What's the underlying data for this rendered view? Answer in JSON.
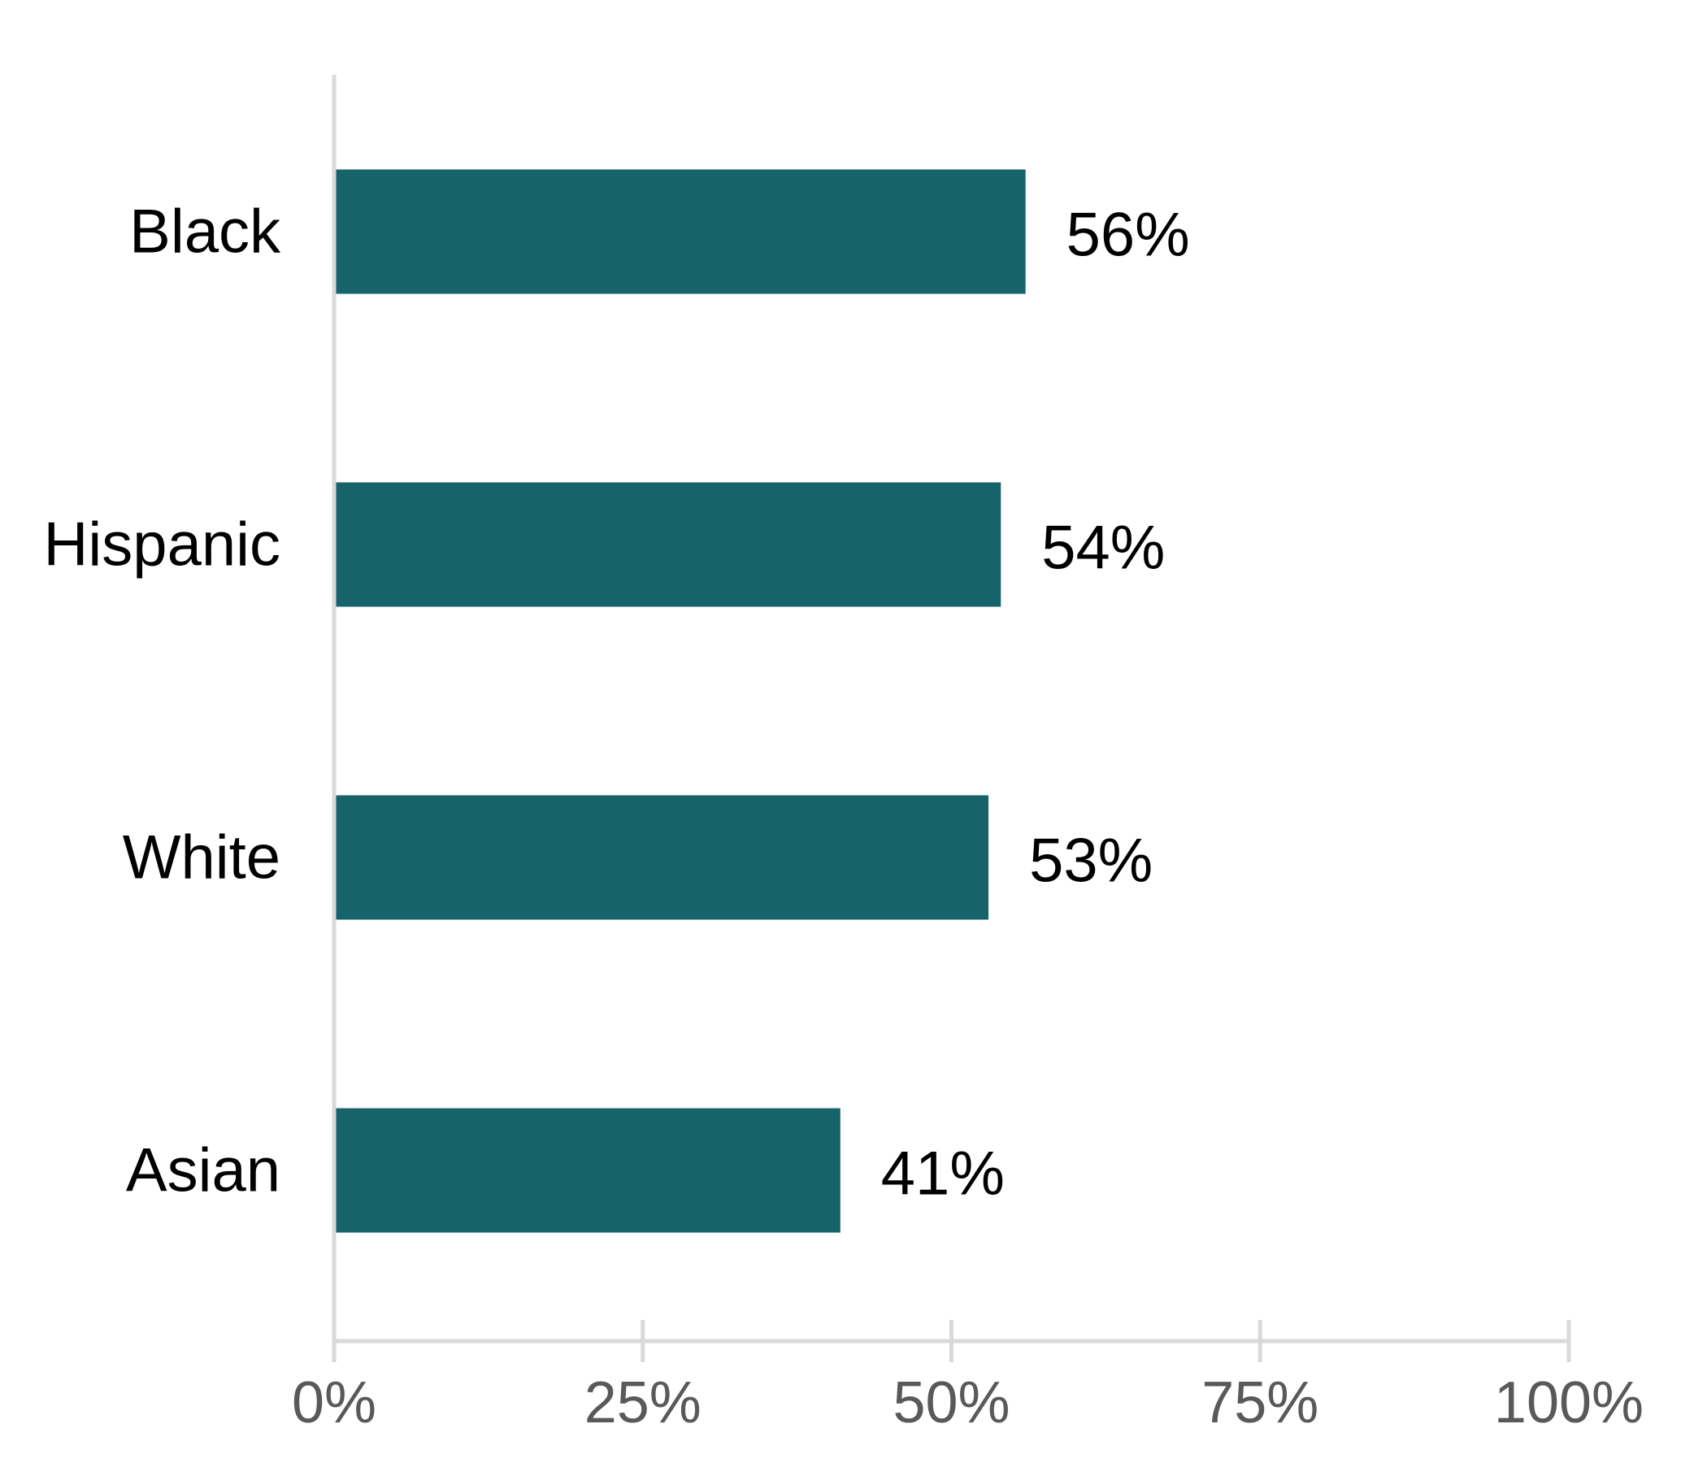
{
  "chart_data": {
    "type": "bar",
    "orientation": "horizontal",
    "categories": [
      "Black",
      "Hispanic",
      "White",
      "Asian"
    ],
    "values": [
      56,
      54,
      53,
      41
    ],
    "data_labels": [
      "56%",
      "54%",
      "53%",
      "41%"
    ],
    "xlim": [
      0,
      100
    ],
    "xticks": [
      0,
      25,
      50,
      75,
      100
    ],
    "xtick_labels": [
      "0%",
      "25%",
      "50%",
      "75%",
      "100%"
    ],
    "title": "",
    "xlabel": "",
    "ylabel": "",
    "grid": false,
    "legend": "none",
    "colors": {
      "bar": "#17636B",
      "axis": "#D9D9D9",
      "tick_text": "#595959",
      "label_text": "#000000"
    }
  }
}
